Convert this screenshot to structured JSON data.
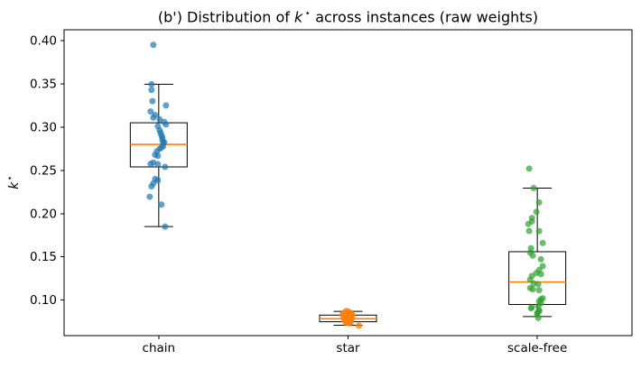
{
  "title": {
    "prefix": "(b') Distribution of ",
    "math": "k",
    "sup": "⋆",
    "suffix": " across instances (raw weights)"
  },
  "y_axis_label": {
    "math": "k",
    "sup": "⋆"
  },
  "chart_data": {
    "type": "box",
    "title": "(b') Distribution of k⋆ across instances (raw weights)",
    "xlabel": "",
    "ylabel": "k⋆",
    "categories": [
      "chain",
      "star",
      "scale-free"
    ],
    "ylim": [
      0.059,
      0.4125
    ],
    "yticks": [
      0.1,
      0.15,
      0.2,
      0.25,
      0.3,
      0.35,
      0.4
    ],
    "grid": false,
    "legend": false,
    "median_color": "#ff7f0e",
    "box_edge_color": "#000000",
    "box_fill_color": "#ffffff",
    "groups": [
      {
        "name": "chain",
        "color": "#1f77b4",
        "point_alpha": 0.7,
        "box": {
          "whisker_low": 0.185,
          "q1": 0.254,
          "median": 0.28,
          "q3": 0.305,
          "whisker_high": 0.3495
        },
        "points": [
          [
            0.395,
            -6
          ],
          [
            0.3495,
            -8
          ],
          [
            0.343,
            -8
          ],
          [
            0.33,
            -7
          ],
          [
            0.325,
            8
          ],
          [
            0.318,
            -9
          ],
          [
            0.314,
            -4
          ],
          [
            0.311,
            -6
          ],
          [
            0.309,
            1
          ],
          [
            0.306,
            6
          ],
          [
            0.303,
            8
          ],
          [
            0.301,
            -1
          ],
          [
            0.2965,
            1
          ],
          [
            0.2935,
            2
          ],
          [
            0.2905,
            3
          ],
          [
            0.288,
            4
          ],
          [
            0.285,
            4
          ],
          [
            0.2825,
            6
          ],
          [
            0.2818,
            5
          ],
          [
            0.278,
            5
          ],
          [
            0.2765,
            3
          ],
          [
            0.2748,
            1
          ],
          [
            0.272,
            -2
          ],
          [
            0.268,
            -4
          ],
          [
            0.2668,
            -1
          ],
          [
            0.259,
            -6
          ],
          [
            0.2575,
            -9
          ],
          [
            0.2572,
            -1
          ],
          [
            0.254,
            7
          ],
          [
            0.24,
            -4
          ],
          [
            0.2385,
            -1
          ],
          [
            0.235,
            -6
          ],
          [
            0.2315,
            -8
          ],
          [
            0.2195,
            -10
          ],
          [
            0.2105,
            3
          ],
          [
            0.185,
            7
          ]
        ]
      },
      {
        "name": "star",
        "color": "#ff7f0e",
        "point_alpha": 0.8,
        "box": {
          "whisker_low": 0.071,
          "q1": 0.075,
          "median": 0.0785,
          "q3": 0.0827,
          "whisker_high": 0.087
        },
        "points": [
          [
            0.0875,
            -2
          ],
          [
            0.0865,
            1
          ],
          [
            0.0855,
            -4
          ],
          [
            0.0848,
            3
          ],
          [
            0.0842,
            -1
          ],
          [
            0.0835,
            -6
          ],
          [
            0.083,
            2
          ],
          [
            0.0826,
            5
          ],
          [
            0.0822,
            0
          ],
          [
            0.0818,
            -3
          ],
          [
            0.0814,
            4
          ],
          [
            0.081,
            -1
          ],
          [
            0.0806,
            2
          ],
          [
            0.0801,
            -5
          ],
          [
            0.0796,
            3
          ],
          [
            0.0791,
            0
          ],
          [
            0.0786,
            -3
          ],
          [
            0.0781,
            4
          ],
          [
            0.0777,
            -1
          ],
          [
            0.0773,
            1
          ],
          [
            0.0768,
            -4
          ],
          [
            0.0764,
            2
          ],
          [
            0.0759,
            0
          ],
          [
            0.0754,
            -2
          ],
          [
            0.075,
            3
          ],
          [
            0.0746,
            -1
          ],
          [
            0.0741,
            1
          ],
          [
            0.0737,
            -2
          ],
          [
            0.0732,
            2
          ],
          [
            0.0705,
            12
          ]
        ]
      },
      {
        "name": "scale-free",
        "color": "#2ca02c",
        "point_alpha": 0.7,
        "box": {
          "whisker_low": 0.081,
          "q1": 0.095,
          "median": 0.121,
          "q3": 0.156,
          "whisker_high": 0.2295
        },
        "points": [
          [
            0.252,
            -9
          ],
          [
            0.2295,
            -4
          ],
          [
            0.213,
            2
          ],
          [
            0.202,
            -1
          ],
          [
            0.195,
            -6
          ],
          [
            0.191,
            -6
          ],
          [
            0.188,
            -10
          ],
          [
            0.18,
            -9
          ],
          [
            0.1798,
            2
          ],
          [
            0.166,
            6
          ],
          [
            0.16,
            -7
          ],
          [
            0.155,
            -8
          ],
          [
            0.1515,
            -5
          ],
          [
            0.1473,
            4
          ],
          [
            0.1393,
            6
          ],
          [
            0.1348,
            2
          ],
          [
            0.1313,
            -1
          ],
          [
            0.13,
            4
          ],
          [
            0.128,
            -6
          ],
          [
            0.1237,
            -8
          ],
          [
            0.1192,
            -4
          ],
          [
            0.1185,
            1
          ],
          [
            0.114,
            -8
          ],
          [
            0.1126,
            -5
          ],
          [
            0.1115,
            2
          ],
          [
            0.1021,
            6
          ],
          [
            0.101,
            4
          ],
          [
            0.0987,
            2
          ],
          [
            0.0966,
            4
          ],
          [
            0.0931,
            1
          ],
          [
            0.0917,
            -6
          ],
          [
            0.0906,
            -7
          ],
          [
            0.0883,
            2
          ],
          [
            0.0872,
            2
          ],
          [
            0.0855,
            0
          ],
          [
            0.0837,
            0
          ],
          [
            0.0795,
            1
          ]
        ]
      }
    ]
  }
}
